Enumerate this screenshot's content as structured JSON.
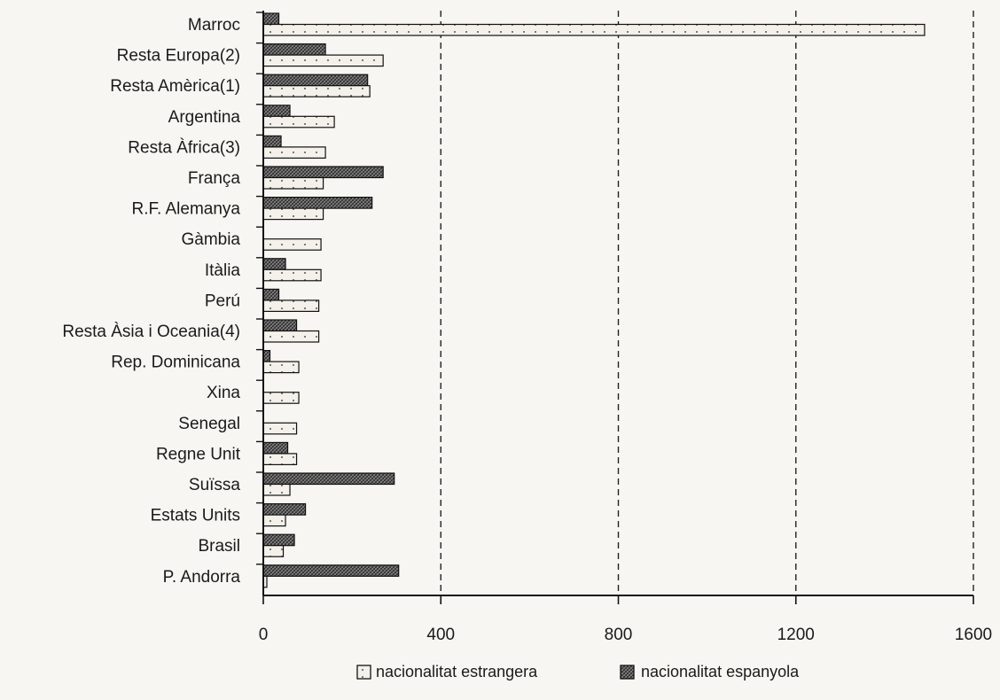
{
  "chart_data": {
    "type": "bar",
    "orientation": "horizontal",
    "categories": [
      "Marroc",
      "Resta Europa(2)",
      "Resta Amèrica(1)",
      "Argentina",
      "Resta Àfrica(3)",
      "França",
      "R.F. Alemanya",
      "Gàmbia",
      "Itàlia",
      "Perú",
      "Resta Àsia i Oceania(4)",
      "Rep. Dominicana",
      "Xina",
      "Senegal",
      "Regne Unit",
      "Suïssa",
      "Estats Units",
      "Brasil",
      "P. Andorra"
    ],
    "series": [
      {
        "name": "nacionalitat espanyola",
        "values": [
          35,
          140,
          235,
          60,
          40,
          270,
          245,
          0,
          50,
          35,
          75,
          15,
          0,
          0,
          55,
          295,
          95,
          70,
          305
        ]
      },
      {
        "name": "nacionalitat estrangera",
        "values": [
          1490,
          270,
          240,
          160,
          140,
          135,
          135,
          130,
          130,
          125,
          125,
          80,
          80,
          75,
          75,
          60,
          50,
          45,
          8
        ]
      }
    ],
    "xticks": [
      "0",
      "400",
      "800",
      "1200",
      "1600"
    ],
    "xlim": [
      0,
      1600
    ],
    "grid": "vertical dashed",
    "legend_position": "bottom"
  },
  "colors": {
    "espanyola": "#6a6a6a",
    "estrangera": "#f3f1ea"
  }
}
